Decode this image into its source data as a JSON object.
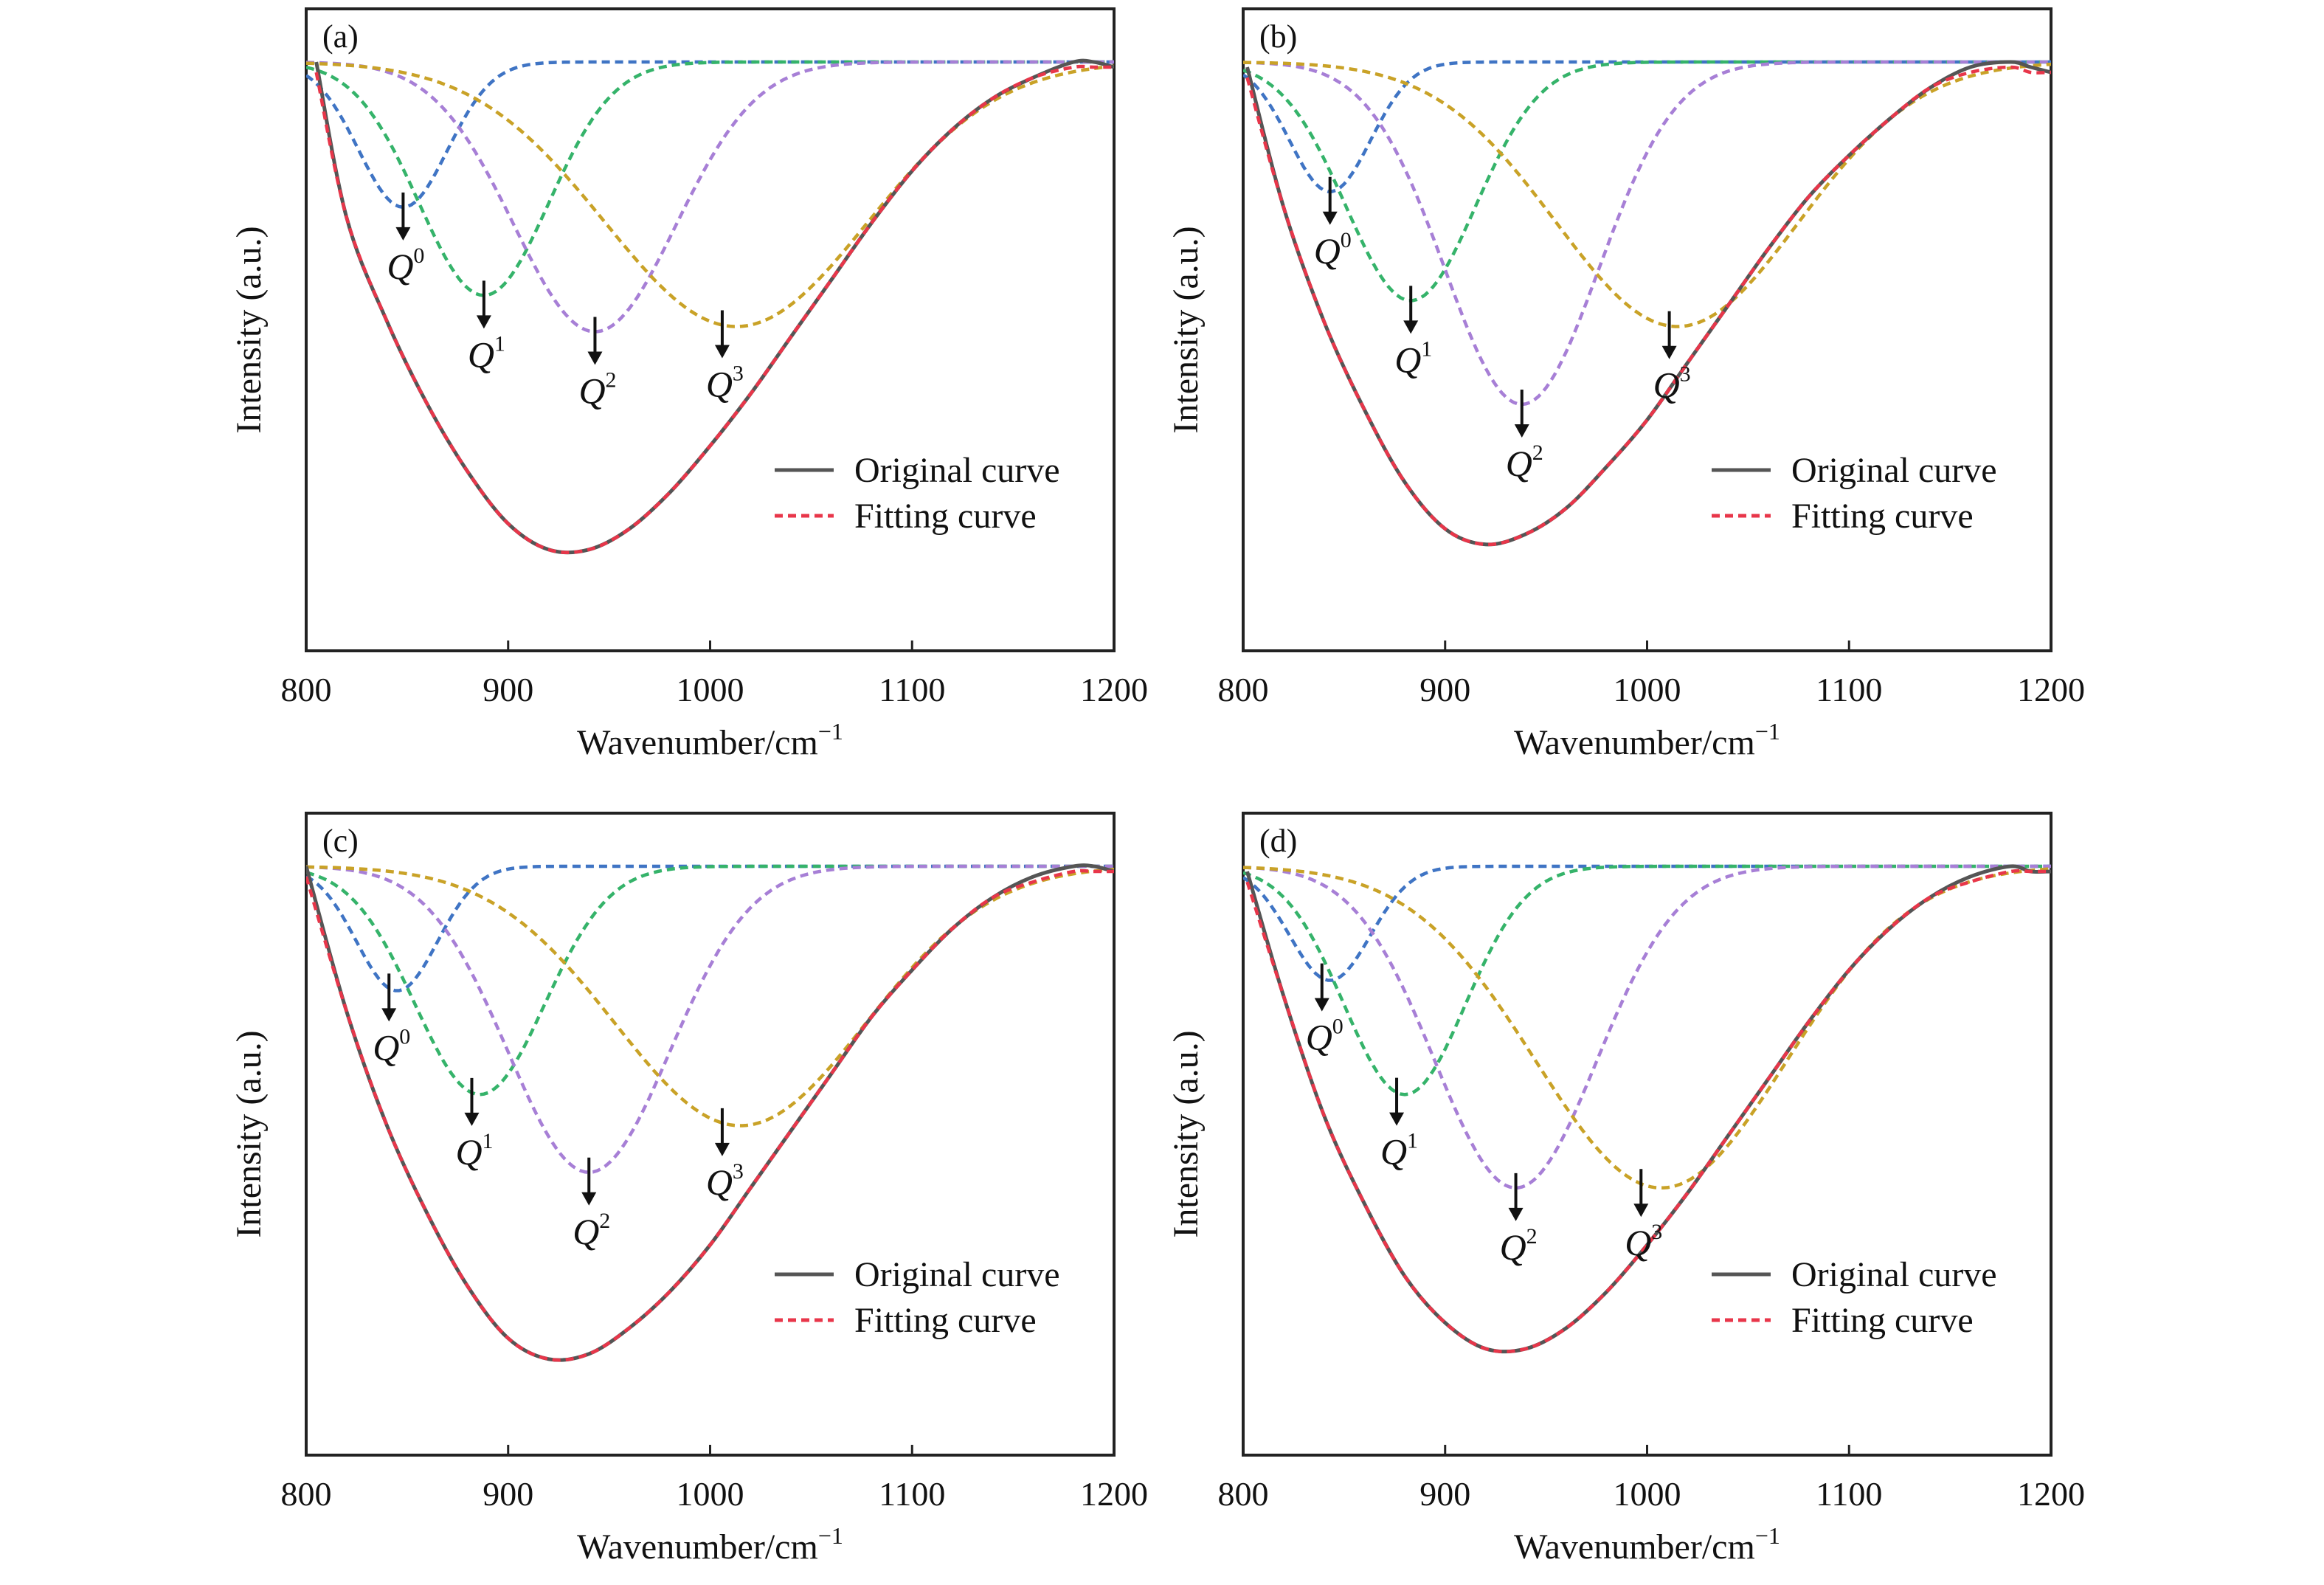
{
  "chart_data": [
    {
      "type": "line",
      "panel_label": "(a)",
      "xlabel": "Wavenumber/cm",
      "xlabel_sup": "−1",
      "ylabel": "Intensity (a.u.)",
      "xlim": [
        800,
        1200
      ],
      "xticks": [
        "800",
        "900",
        "1000",
        "1100",
        "1200"
      ],
      "grid": false,
      "legend": {
        "placement": "lower-right",
        "entries": [
          "Original curve",
          "Fitting curve"
        ]
      },
      "series": [
        {
          "name": "Original curve",
          "style": "solid",
          "color": "#555555",
          "x": [
            805,
            820,
            840,
            860,
            880,
            900,
            920,
            940,
            960,
            980,
            1000,
            1020,
            1040,
            1060,
            1080,
            1100,
            1120,
            1140,
            1160,
            1180,
            1190,
            1200
          ],
          "y": [
            1.0,
            0.7,
            0.5,
            0.34,
            0.21,
            0.11,
            0.06,
            0.06,
            0.1,
            0.17,
            0.26,
            0.36,
            0.47,
            0.58,
            0.69,
            0.79,
            0.87,
            0.93,
            0.97,
            1.0,
            1.0,
            0.99
          ]
        },
        {
          "name": "Fitting curve",
          "style": "dashed",
          "color": "#e8364a",
          "x": [
            805,
            820,
            840,
            860,
            880,
            900,
            920,
            940,
            960,
            980,
            1000,
            1020,
            1040,
            1060,
            1080,
            1100,
            1120,
            1140,
            1160,
            1180,
            1190,
            1200
          ],
          "y": [
            0.98,
            0.7,
            0.5,
            0.34,
            0.21,
            0.11,
            0.06,
            0.06,
            0.1,
            0.17,
            0.26,
            0.36,
            0.47,
            0.58,
            0.69,
            0.79,
            0.87,
            0.93,
            0.97,
            0.99,
            0.99,
            0.99
          ]
        }
      ],
      "components": [
        {
          "label": "Q",
          "sup": "0",
          "center": 848,
          "depth": 0.28,
          "width": 22,
          "color": "#3f74c4",
          "arrow_x": 848
        },
        {
          "label": "Q",
          "sup": "1",
          "center": 888,
          "depth": 0.45,
          "width": 32,
          "color": "#35b36a",
          "arrow_x": 888
        },
        {
          "label": "Q",
          "sup": "2",
          "center": 943,
          "depth": 0.52,
          "width": 40,
          "color": "#a77fd6",
          "arrow_x": 943
        },
        {
          "label": "Q",
          "sup": "3",
          "center": 1013,
          "depth": 0.51,
          "width": 65,
          "color": "#c9a227",
          "arrow_x": 1006
        }
      ]
    },
    {
      "type": "line",
      "panel_label": "(b)",
      "xlabel": "Wavenumber/cm",
      "xlabel_sup": "−1",
      "ylabel": "Intensity (a.u.)",
      "xlim": [
        800,
        1200
      ],
      "xticks": [
        "800",
        "900",
        "1000",
        "1100",
        "1200"
      ],
      "grid": false,
      "legend": {
        "placement": "lower-right",
        "entries": [
          "Original curve",
          "Fitting curve"
        ]
      },
      "series": [
        {
          "name": "Original curve",
          "style": "solid",
          "color": "#555555",
          "x": [
            802,
            820,
            840,
            860,
            880,
            900,
            920,
            940,
            960,
            980,
            1000,
            1020,
            1040,
            1060,
            1080,
            1100,
            1120,
            1140,
            1160,
            1180,
            1190,
            1200
          ],
          "y": [
            0.99,
            0.72,
            0.5,
            0.33,
            0.19,
            0.1,
            0.07,
            0.09,
            0.14,
            0.22,
            0.31,
            0.42,
            0.53,
            0.64,
            0.74,
            0.82,
            0.89,
            0.95,
            0.99,
            1.0,
            0.99,
            0.98
          ]
        },
        {
          "name": "Fitting curve",
          "style": "dashed",
          "color": "#e8364a",
          "x": [
            802,
            820,
            840,
            860,
            880,
            900,
            920,
            940,
            960,
            980,
            1000,
            1020,
            1040,
            1060,
            1080,
            1100,
            1120,
            1140,
            1160,
            1180,
            1190,
            1200
          ],
          "y": [
            0.97,
            0.72,
            0.5,
            0.33,
            0.19,
            0.1,
            0.07,
            0.09,
            0.14,
            0.22,
            0.31,
            0.42,
            0.53,
            0.64,
            0.74,
            0.82,
            0.89,
            0.95,
            0.98,
            0.99,
            0.98,
            0.98
          ]
        }
      ],
      "components": [
        {
          "label": "Q",
          "sup": "0",
          "center": 843,
          "depth": 0.25,
          "width": 20,
          "color": "#3f74c4",
          "arrow_x": 843
        },
        {
          "label": "Q",
          "sup": "1",
          "center": 883,
          "depth": 0.46,
          "width": 32,
          "color": "#35b36a",
          "arrow_x": 883
        },
        {
          "label": "Q",
          "sup": "2",
          "center": 938,
          "depth": 0.66,
          "width": 38,
          "color": "#a77fd6",
          "arrow_x": 938
        },
        {
          "label": "Q",
          "sup": "3",
          "center": 1015,
          "depth": 0.51,
          "width": 60,
          "color": "#c9a227",
          "arrow_x": 1011
        }
      ]
    },
    {
      "type": "line",
      "panel_label": "(c)",
      "xlabel": "Wavenumber/cm",
      "xlabel_sup": "−1",
      "ylabel": "Intensity (a.u.)",
      "xlim": [
        800,
        1200
      ],
      "xticks": [
        "800",
        "900",
        "1000",
        "1100",
        "1200"
      ],
      "grid": false,
      "legend": {
        "placement": "lower-right",
        "entries": [
          "Original curve",
          "Fitting curve"
        ]
      },
      "series": [
        {
          "name": "Original curve",
          "style": "solid",
          "color": "#555555",
          "x": [
            800,
            820,
            840,
            860,
            880,
            900,
            920,
            940,
            960,
            980,
            1000,
            1020,
            1040,
            1060,
            1080,
            1100,
            1120,
            1140,
            1160,
            1180,
            1190,
            1200
          ],
          "y": [
            1.0,
            0.72,
            0.5,
            0.33,
            0.19,
            0.09,
            0.05,
            0.06,
            0.11,
            0.18,
            0.27,
            0.38,
            0.49,
            0.6,
            0.71,
            0.8,
            0.88,
            0.94,
            0.98,
            1.0,
            1.0,
            0.99
          ]
        },
        {
          "name": "Fitting curve",
          "style": "dashed",
          "color": "#e8364a",
          "x": [
            800,
            820,
            840,
            860,
            880,
            900,
            920,
            940,
            960,
            980,
            1000,
            1020,
            1040,
            1060,
            1080,
            1100,
            1120,
            1140,
            1160,
            1180,
            1190,
            1200
          ],
          "y": [
            0.98,
            0.72,
            0.5,
            0.33,
            0.19,
            0.09,
            0.05,
            0.06,
            0.11,
            0.18,
            0.27,
            0.38,
            0.49,
            0.6,
            0.71,
            0.8,
            0.88,
            0.94,
            0.97,
            0.99,
            0.99,
            0.99
          ]
        }
      ],
      "components": [
        {
          "label": "Q",
          "sup": "0",
          "center": 845,
          "depth": 0.24,
          "width": 20,
          "color": "#3f74c4",
          "arrow_x": 841
        },
        {
          "label": "Q",
          "sup": "1",
          "center": 886,
          "depth": 0.44,
          "width": 32,
          "color": "#35b36a",
          "arrow_x": 882
        },
        {
          "label": "Q",
          "sup": "2",
          "center": 940,
          "depth": 0.59,
          "width": 40,
          "color": "#a77fd6",
          "arrow_x": 940
        },
        {
          "label": "Q",
          "sup": "3",
          "center": 1015,
          "depth": 0.5,
          "width": 62,
          "color": "#c9a227",
          "arrow_x": 1006
        }
      ]
    },
    {
      "type": "line",
      "panel_label": "(d)",
      "xlabel": "Wavenumber/cm",
      "xlabel_sup": "−1",
      "ylabel": "Intensity (a.u.)",
      "xlim": [
        800,
        1200
      ],
      "xticks": [
        "800",
        "900",
        "1000",
        "1100",
        "1200"
      ],
      "grid": false,
      "legend": {
        "placement": "lower-right",
        "entries": [
          "Original curve",
          "Fitting curve"
        ]
      },
      "series": [
        {
          "name": "Original curve",
          "style": "solid",
          "color": "#555555",
          "x": [
            802,
            820,
            840,
            860,
            880,
            900,
            920,
            940,
            960,
            980,
            1000,
            1020,
            1040,
            1060,
            1080,
            1100,
            1120,
            1140,
            1160,
            1180,
            1190,
            1200
          ],
          "y": [
            0.99,
            0.75,
            0.52,
            0.35,
            0.21,
            0.12,
            0.07,
            0.07,
            0.11,
            0.18,
            0.27,
            0.37,
            0.48,
            0.59,
            0.7,
            0.8,
            0.88,
            0.94,
            0.98,
            1.0,
            0.99,
            0.99
          ]
        },
        {
          "name": "Fitting curve",
          "style": "dashed",
          "color": "#e8364a",
          "x": [
            802,
            820,
            840,
            860,
            880,
            900,
            920,
            940,
            960,
            980,
            1000,
            1020,
            1040,
            1060,
            1080,
            1100,
            1120,
            1140,
            1160,
            1180,
            1190,
            1200
          ],
          "y": [
            0.97,
            0.75,
            0.52,
            0.35,
            0.21,
            0.12,
            0.07,
            0.07,
            0.11,
            0.18,
            0.27,
            0.37,
            0.48,
            0.59,
            0.7,
            0.8,
            0.88,
            0.94,
            0.97,
            0.99,
            0.99,
            0.99
          ]
        }
      ],
      "components": [
        {
          "label": "Q",
          "sup": "0",
          "center": 843,
          "depth": 0.22,
          "width": 20,
          "color": "#3f74c4",
          "arrow_x": 839
        },
        {
          "label": "Q",
          "sup": "1",
          "center": 880,
          "depth": 0.44,
          "width": 30,
          "color": "#35b36a",
          "arrow_x": 876
        },
        {
          "label": "Q",
          "sup": "2",
          "center": 935,
          "depth": 0.62,
          "width": 40,
          "color": "#a77fd6",
          "arrow_x": 935
        },
        {
          "label": "Q",
          "sup": "3",
          "center": 1007,
          "depth": 0.62,
          "width": 62,
          "color": "#c9a227",
          "arrow_x": 997
        }
      ]
    }
  ]
}
